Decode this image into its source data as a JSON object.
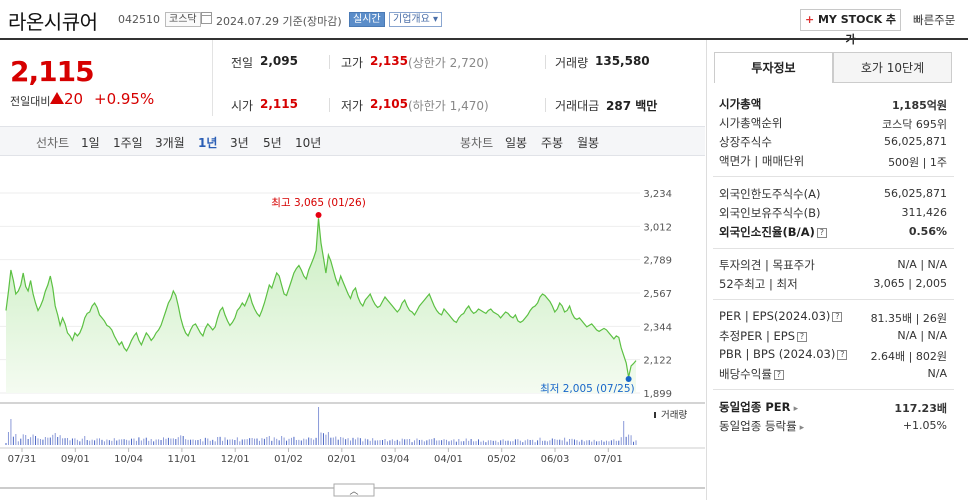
{
  "header": {
    "company": "라온시큐어",
    "code": "042510",
    "market": "코스닥",
    "date": "2024.07.29 기준(장마감)",
    "realtime_label": "실시간",
    "info_label": "기업개요",
    "mystock_label": "MY STOCK 추가",
    "quick_order": "빠른주문"
  },
  "quote": {
    "price": "2,115",
    "change_label": "전일대비",
    "change": "20",
    "change_pct": "+0.95%",
    "prev_label": "전일",
    "prev": "2,095",
    "high_label": "고가",
    "high": "2,135",
    "upper_limit": "(상한가 2,720)",
    "volume_label": "거래량",
    "volume": "135,580",
    "open_label": "시가",
    "open": "2,115",
    "low_label": "저가",
    "low": "2,105",
    "lower_limit": "(하한가 1,470)",
    "amount_label": "거래대금",
    "amount": "287 백만"
  },
  "tabs": {
    "line_label": "선차트",
    "periods": [
      "1일",
      "1주일",
      "3개월",
      "1년",
      "3년",
      "5년",
      "10년"
    ],
    "active_period": "1년",
    "candle_label": "봉차트",
    "candle_periods": [
      "일봉",
      "주봉",
      "월봉"
    ]
  },
  "chart_data": {
    "type": "area",
    "y_ticks": [
      "3,234",
      "3,012",
      "2,789",
      "2,567",
      "2,344",
      "2,122",
      "1,899"
    ],
    "ylim": [
      1899,
      3234
    ],
    "x_ticks": [
      "07/31",
      "09/01",
      "10/04",
      "11/01",
      "12/01",
      "01/02",
      "02/01",
      "03/04",
      "04/01",
      "05/02",
      "06/03",
      "07/01"
    ],
    "high_annotation": "최고 3,065 (01/26)",
    "low_annotation": "최저 2,005 (07/25)",
    "volume_legend": "거래량",
    "series": [
      {
        "values": [
          2450,
          2580,
          2720,
          2650,
          2560,
          2580,
          2620,
          2700,
          2610,
          2580,
          2650,
          2560,
          2500,
          2450,
          2480,
          2520,
          2580,
          2620,
          2680,
          2600,
          2480,
          2420,
          2350,
          2400,
          2360,
          2300,
          2280,
          2250,
          2300,
          2280,
          2300,
          2340,
          2400,
          2430,
          2440,
          2480,
          2500,
          2470,
          2420,
          2400,
          2380,
          2350,
          2340,
          2320,
          2280,
          2250,
          2220,
          2240,
          2200,
          2180,
          2210,
          2250,
          2280,
          2300,
          2250,
          2220,
          2260,
          2300,
          2280,
          2250,
          2270,
          2300,
          2320,
          2350,
          2400,
          2450,
          2500,
          2530,
          2580,
          2550,
          2480,
          2400,
          2340,
          2300,
          2280,
          2320,
          2350,
          2360,
          2330,
          2300,
          2280,
          2330,
          2360,
          2340,
          2320,
          2340,
          2400,
          2450,
          2470,
          2420,
          2380,
          2350,
          2370,
          2400,
          2450,
          2470,
          2500,
          2480,
          2520,
          2560,
          2500,
          2460,
          2430,
          2410,
          2450,
          2500,
          2560,
          2620,
          2600,
          2650,
          2700,
          2680,
          2620,
          2560,
          2550,
          2600,
          2650,
          2700,
          2730,
          2750,
          2720,
          2680,
          2660,
          2720,
          2760,
          2800,
          2850,
          3065,
          2900,
          2800,
          2700,
          2820,
          2780,
          2720,
          2660,
          2620,
          2680,
          2640,
          2600,
          2560,
          2530,
          2580,
          2600,
          2540,
          2500,
          2480,
          2520,
          2540,
          2560,
          2520,
          2490,
          2470,
          2480,
          2510,
          2540,
          2520,
          2500,
          2480,
          2460,
          2440,
          2460,
          2500,
          2520,
          2480,
          2450,
          2440,
          2420,
          2450,
          2480,
          2500,
          2520,
          2540,
          2560,
          2520,
          2480,
          2450,
          2430,
          2420,
          2460,
          2440,
          2420,
          2400,
          2380,
          2370,
          2400,
          2420,
          2430,
          2460,
          2480,
          2450,
          2430,
          2440,
          2460,
          2450,
          2440,
          2430,
          2450,
          2460,
          2440,
          2430,
          2420,
          2400,
          2420,
          2440,
          2430,
          2410,
          2400,
          2420,
          2380,
          2370,
          2380,
          2400,
          2420,
          2450,
          2470,
          2480,
          2500,
          2540,
          2560,
          2550,
          2530,
          2510,
          2480,
          2440,
          2460,
          2500,
          2480,
          2440,
          2450,
          2480,
          2430,
          2400,
          2390,
          2400,
          2380,
          2360,
          2340,
          2350,
          2360,
          2340,
          2320,
          2310,
          2320,
          2330,
          2320,
          2300,
          2280,
          2260,
          2280,
          2270,
          2200,
          2150,
          2100,
          2005,
          2080,
          2095,
          2115
        ]
      }
    ]
  },
  "panel": {
    "tab_invest": "투자정보",
    "tab_hoga": "호가 10단계",
    "market_cap_label": "시가총액",
    "market_cap": "1,185억원",
    "cap_rank_label": "시가총액순위",
    "cap_rank": "코스닥 695위",
    "shares_label": "상장주식수",
    "shares": "56,025,871",
    "par_label": "액면가 | 매매단위",
    "par": "500원 | 1주",
    "foreign_limit_label": "외국인한도주식수(A)",
    "foreign_limit": "56,025,871",
    "foreign_hold_label": "외국인보유주식수(B)",
    "foreign_hold": "311,426",
    "foreign_ratio_label": "외국인소진율(B/A)",
    "foreign_ratio": "0.56%",
    "opinion_label": "투자의견 | 목표주가",
    "opinion": "N/A | N/A",
    "w52_label": "52주최고 | 최저",
    "w52": "3,065 | 2,005",
    "per_label": "PER | EPS(2024.03)",
    "per": "81.35배 | 26원",
    "est_per_label": "추정PER | EPS",
    "est_per": "N/A | N/A",
    "pbr_label": "PBR | BPS (2024.03)",
    "pbr": "2.64배 | 802원",
    "div_label": "배당수익률",
    "div": "N/A",
    "sector_per_label": "동일업종 PER",
    "sector_per": "117.23배",
    "sector_chg_label": "동일업종 등락률",
    "sector_chg": "+1.05%"
  }
}
